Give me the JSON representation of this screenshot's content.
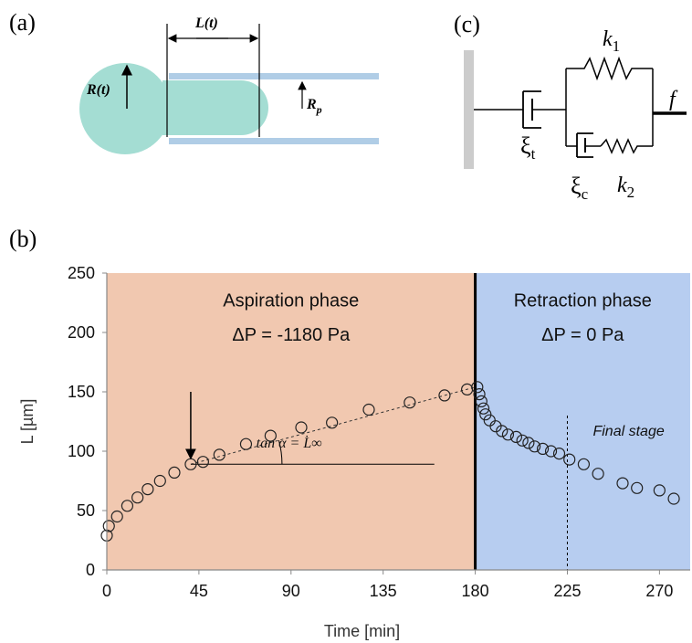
{
  "panels": {
    "a": {
      "label": "(a)",
      "length_label": "L(t)",
      "radius_label": "R(t)",
      "pipette_radius_label": "R",
      "pipette_radius_sub": "p"
    },
    "b": {
      "label": "(b)"
    },
    "c": {
      "label": "(c)",
      "k1_label": "k",
      "k1_sub": "1",
      "k2_label": "k",
      "k2_sub": "2",
      "xi_t_label": "ξ",
      "xi_t_sub": "t",
      "xi_c_label": "ξ",
      "xi_c_sub": "c",
      "force_label": "f"
    }
  },
  "colors": {
    "aspiration_bg": "#f1c8b0",
    "retraction_bg": "#b7cdf0",
    "cell": "#a4ddd3",
    "pipette": "#b0cde6",
    "wall": "#cccccc"
  },
  "chart_data": {
    "type": "scatter",
    "xlabel": "Time [min]",
    "ylabel": "L [µm]",
    "xlim": [
      0,
      285
    ],
    "ylim": [
      0,
      250
    ],
    "xticks": [
      0,
      45,
      90,
      135,
      180,
      225,
      270
    ],
    "yticks": [
      0,
      50,
      100,
      150,
      200,
      250
    ],
    "grid": false,
    "regions": [
      {
        "name": "Aspiration phase",
        "subtitle": "ΔP = -1180 Pa",
        "x_range": [
          0,
          180
        ]
      },
      {
        "name": "Retraction phase",
        "subtitle": "ΔP = 0 Pa",
        "x_range": [
          180,
          285
        ]
      }
    ],
    "phase_boundary_x": 180,
    "final_stage": {
      "label": "Final stage",
      "x": 225
    },
    "arrow_annotation_x": 41,
    "fit_line": {
      "from": [
        41,
        89
      ],
      "to": [
        180,
        154
      ]
    },
    "tangent_label": "tan α = L̇∞",
    "points": [
      [
        0,
        29
      ],
      [
        1,
        37
      ],
      [
        5,
        45
      ],
      [
        10,
        54
      ],
      [
        15,
        61
      ],
      [
        20,
        68
      ],
      [
        26,
        75
      ],
      [
        33,
        82
      ],
      [
        41,
        89
      ],
      [
        47,
        91
      ],
      [
        55,
        97
      ],
      [
        68,
        106
      ],
      [
        80,
        113
      ],
      [
        95,
        120
      ],
      [
        110,
        124
      ],
      [
        128,
        135
      ],
      [
        148,
        141
      ],
      [
        165,
        147
      ],
      [
        176,
        152
      ],
      [
        181,
        154
      ],
      [
        182,
        148
      ],
      [
        183,
        142
      ],
      [
        184,
        136
      ],
      [
        185,
        131
      ],
      [
        187,
        126
      ],
      [
        190,
        121
      ],
      [
        193,
        117
      ],
      [
        196,
        114
      ],
      [
        200,
        112
      ],
      [
        203,
        109
      ],
      [
        206,
        107
      ],
      [
        209,
        104
      ],
      [
        213,
        102
      ],
      [
        217,
        100
      ],
      [
        221,
        98
      ],
      [
        226,
        93
      ],
      [
        233,
        89
      ],
      [
        240,
        81
      ],
      [
        252,
        73
      ],
      [
        259,
        69
      ],
      [
        270,
        67
      ],
      [
        277,
        60
      ]
    ]
  }
}
